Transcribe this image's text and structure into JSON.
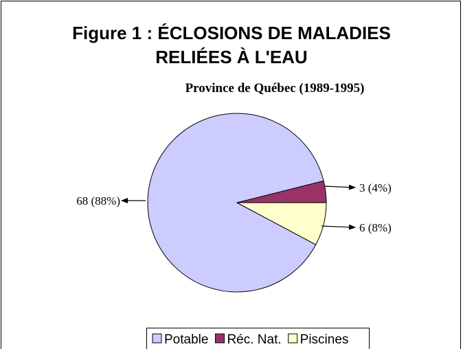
{
  "chart_data": {
    "type": "pie",
    "title": [
      "Figure 1 : ÉCLOSIONS DE MALADIES",
      "RELIÉES À L'EAU"
    ],
    "subtitle": "Province de Québec (1989-1995)",
    "categories": [
      "Potable",
      "Réc. Nat.",
      "Piscines"
    ],
    "values": [
      68,
      3,
      6
    ],
    "value_labels": [
      "68 (88%)",
      "3 (4%)",
      "6 (8%)"
    ],
    "colors": [
      "#ccccff",
      "#993366",
      "#ffffcc"
    ],
    "legend": "bottom"
  }
}
